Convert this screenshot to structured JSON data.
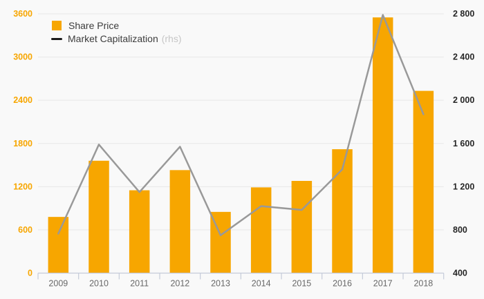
{
  "legend": {
    "share_price_label": "Share Price",
    "market_cap_label": "Market Capitalization",
    "market_cap_suffix": "(rhs)"
  },
  "colors": {
    "bar": "#F7A600",
    "line": "#999999",
    "legend_line_marker": "#1A1A1A",
    "left_axis_label": "#F7A600",
    "right_axis_label": "#262626",
    "year_label": "#686868",
    "grid": "#E7E7E7",
    "axis": "#C5CBD9",
    "rhs_suffix": "#C6C6C6",
    "background": "#F9F9F9"
  },
  "chart_data": {
    "type": "bar",
    "title": "",
    "categories": [
      "2009",
      "2010",
      "2011",
      "2012",
      "2013",
      "2014",
      "2015",
      "2016",
      "2017",
      "2018"
    ],
    "series": [
      {
        "name": "Share Price",
        "type": "bar",
        "axis": "left",
        "values": [
          780,
          1560,
          1150,
          1430,
          850,
          1190,
          1280,
          1720,
          3550,
          2530
        ]
      },
      {
        "name": "Market Capitalization",
        "type": "line",
        "axis": "right",
        "values": [
          765,
          1590,
          1150,
          1570,
          750,
          1020,
          985,
          1360,
          2790,
          1870
        ]
      }
    ],
    "left_axis": {
      "min": 0,
      "max": 3600,
      "step": 600,
      "tick_labels": [
        "0",
        "600",
        "1200",
        "1800",
        "2400",
        "3000",
        "3600"
      ]
    },
    "right_axis": {
      "min": 400,
      "max": 2800,
      "step": 400,
      "tick_labels": [
        "400",
        "800",
        "1 200",
        "1 600",
        "2 000",
        "2 400",
        "2 800"
      ]
    },
    "grid": true,
    "legend_position": "top-left"
  }
}
